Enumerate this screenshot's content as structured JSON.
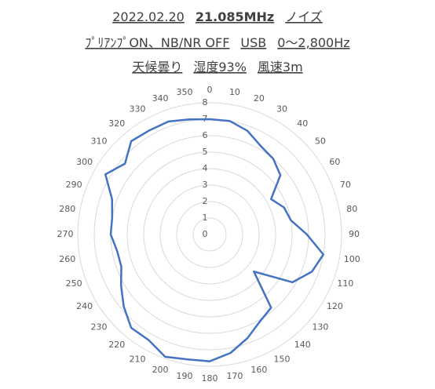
{
  "chart_data": {
    "type": "radar",
    "title": [
      "2022.02.20",
      "21.085MHz",
      "ノイズ"
    ],
    "subtitle": [
      "ﾌﾟﾘｱﾝﾌﾟON、NB/NR OFF",
      "USB",
      "0～2,800Hz"
    ],
    "subtitle2": [
      "天候曇り",
      "湿度93%",
      "風速3m"
    ],
    "categories": [
      "0",
      "10",
      "20",
      "30",
      "40",
      "50",
      "60",
      "70",
      "80",
      "90",
      "100",
      "110",
      "120",
      "130",
      "140",
      "150",
      "160",
      "170",
      "180",
      "190",
      "200",
      "210",
      "220",
      "230",
      "240",
      "250",
      "260",
      "270",
      "280",
      "290",
      "300",
      "310",
      "320",
      "330",
      "340",
      "350"
    ],
    "values": [
      7.0,
      7.0,
      6.7,
      6.2,
      6.0,
      5.6,
      4.3,
      4.8,
      5.0,
      5.9,
      7.0,
      6.6,
      5.8,
      3.5,
      5.8,
      6.1,
      6.7,
      7.3,
      7.7,
      7.7,
      7.9,
      7.4,
      7.4,
      6.8,
      6.2,
      5.7,
      5.7,
      6.0,
      6.0,
      6.3,
      7.3,
      6.7,
      7.4,
      7.3,
      7.3,
      7.1
    ],
    "color": "#4472c4",
    "rlim": [
      0,
      8
    ],
    "rticks": [
      0,
      1,
      2,
      3,
      4,
      5,
      6,
      7,
      8
    ],
    "grid": true
  }
}
